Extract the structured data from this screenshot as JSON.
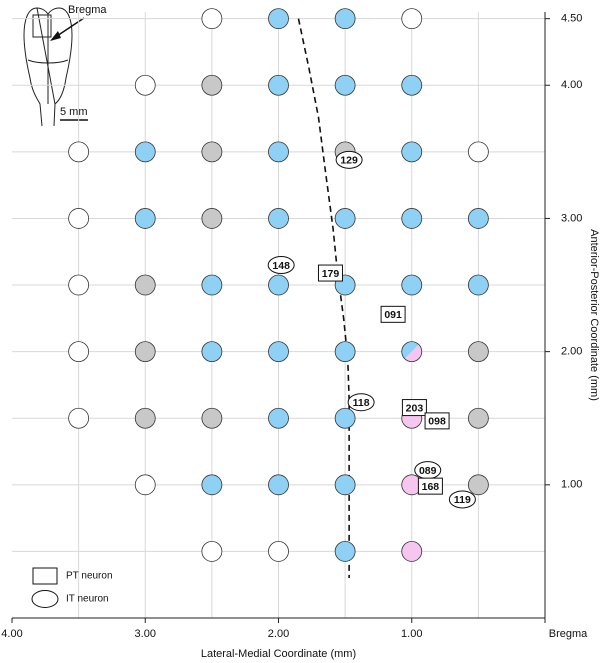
{
  "chart_data": {
    "type": "scatter",
    "xlabel": "Lateral-Medial Coordinate (mm)",
    "ylabel": "Anterior-Posterior Coordinate (mm)",
    "xlim": [
      4,
      0
    ],
    "ylim": [
      0,
      4.55
    ],
    "xticks": [
      {
        "value": 4,
        "label": "4.00"
      },
      {
        "value": 3,
        "label": "3.00"
      },
      {
        "value": 2,
        "label": "2.00"
      },
      {
        "value": 1,
        "label": "1.00"
      },
      {
        "value": 0,
        "label": "Bregma"
      }
    ],
    "yticks": [
      {
        "value": 4.5,
        "label": "4.50"
      },
      {
        "value": 4,
        "label": "4.00"
      },
      {
        "value": 3,
        "label": "3.00"
      },
      {
        "value": 2,
        "label": "2.00"
      },
      {
        "value": 1,
        "label": "1.00"
      }
    ],
    "xgrid": [
      3.5,
      3,
      2.5,
      2,
      1.5,
      1,
      0.5
    ],
    "ygrid": [
      4.5,
      4,
      3.5,
      3,
      2.5,
      2,
      1.5,
      1,
      0.5
    ],
    "series": [
      {
        "color": "#ffffff",
        "x": [
          2.5,
          1,
          3,
          3.5,
          0.5,
          3.5,
          3.5,
          3.5,
          3.5,
          3,
          2.5,
          2
        ],
        "y": [
          4.5,
          4.5,
          4,
          3.5,
          3.5,
          3,
          2.5,
          2,
          1.5,
          1,
          0.5,
          0.5
        ]
      },
      {
        "color": "#c8c8c8",
        "x": [
          2.5,
          2.5,
          1.5,
          2.5,
          3,
          3,
          0.5,
          3,
          2.5,
          0.5,
          0.5
        ],
        "y": [
          4,
          3.5,
          3.5,
          3,
          2.5,
          2,
          2,
          1.5,
          1.5,
          1.5,
          1
        ]
      },
      {
        "color": "#8fd0f5",
        "x": [
          2,
          1.5,
          2,
          1.5,
          1,
          3,
          2,
          1,
          3,
          2,
          1.5,
          1,
          0.5,
          2.5,
          2,
          1.5,
          1,
          0.5,
          2.5,
          2,
          1.5,
          2,
          1.5,
          2.5,
          2,
          1.5,
          1.5
        ],
        "y": [
          4.5,
          4.5,
          4,
          4,
          4,
          3.5,
          3.5,
          3.5,
          3,
          3,
          3,
          3,
          3,
          2.5,
          2.5,
          2.5,
          2.5,
          2.5,
          2,
          2,
          2,
          1.5,
          1.5,
          1,
          1,
          1,
          0.5
        ]
      },
      {
        "color": "#f6c6f0",
        "x": [
          1,
          1,
          1
        ],
        "y": [
          1.5,
          1,
          0.5
        ]
      },
      {
        "colors": [
          "#8fd0f5",
          "#f6c6f0"
        ],
        "x": [
          1
        ],
        "y": [
          2
        ]
      }
    ],
    "line": {
      "style": "dashed",
      "x": [
        1.85,
        1.77,
        1.7,
        1.65,
        1.59,
        1.56,
        1.51,
        1.48,
        1.47,
        1.47,
        1.47
      ],
      "y": [
        4.5,
        4.12,
        3.76,
        3.37,
        2.92,
        2.62,
        2.24,
        1.94,
        1.64,
        1.49,
        0.3
      ]
    },
    "annotations": [
      {
        "text": "129",
        "shape": "ellipse",
        "x": 1.47,
        "y": 3.44
      },
      {
        "text": "148",
        "shape": "ellipse",
        "x": 1.98,
        "y": 2.65
      },
      {
        "text": "179",
        "shape": "box",
        "x": 1.61,
        "y": 2.59
      },
      {
        "text": "091",
        "shape": "box",
        "x": 1.14,
        "y": 2.28
      },
      {
        "text": "118",
        "shape": "ellipse",
        "x": 1.38,
        "y": 1.62
      },
      {
        "text": "203",
        "shape": "box",
        "x": 0.98,
        "y": 1.58
      },
      {
        "text": "098",
        "shape": "box",
        "x": 0.81,
        "y": 1.48
      },
      {
        "text": "089",
        "shape": "ellipse",
        "x": 0.88,
        "y": 1.11
      },
      {
        "text": "168",
        "shape": "box",
        "x": 0.86,
        "y": 0.99
      },
      {
        "text": "119",
        "shape": "ellipse",
        "x": 0.62,
        "y": 0.89
      }
    ],
    "legend": [
      {
        "name": "PT neuron",
        "shape": "box"
      },
      {
        "name": "IT neuron",
        "shape": "ellipse"
      }
    ],
    "inset": {
      "label": "Bregma",
      "scale": "5 mm"
    }
  }
}
